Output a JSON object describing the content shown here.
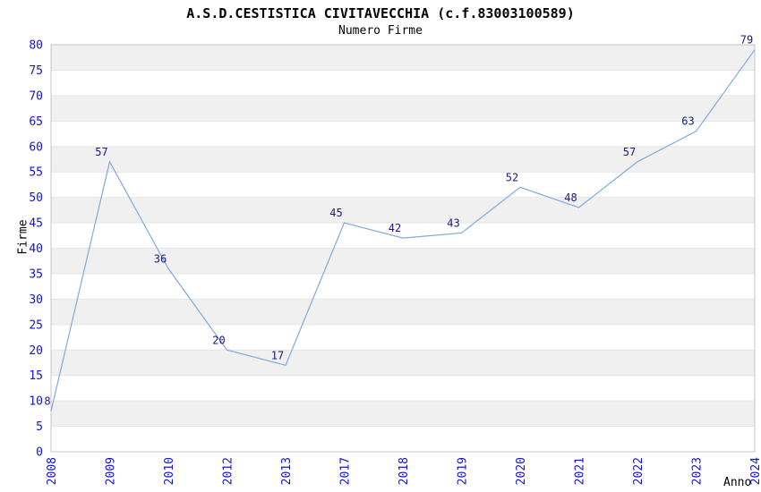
{
  "chart_data": {
    "type": "line",
    "title": "A.S.D.CESTISTICA CIVITAVECCHIA (c.f.83003100589)",
    "subtitle": "Numero Firme",
    "xlabel": "Anno",
    "ylabel": "Firme",
    "categories": [
      "2008",
      "2009",
      "2010",
      "2012",
      "2013",
      "2017",
      "2018",
      "2019",
      "2020",
      "2021",
      "2022",
      "2023",
      "2024"
    ],
    "values": [
      8,
      57,
      36,
      20,
      17,
      45,
      42,
      43,
      52,
      48,
      57,
      63,
      79
    ],
    "ylim": [
      0,
      80
    ],
    "ytick_step": 5,
    "grid": true,
    "legend": "none",
    "bands": {
      "step": 5,
      "white": "#FFFFFF",
      "gray": "#F0F0F0"
    },
    "colors": {
      "line": "#7FAADC",
      "tick_labels": "#1414CC",
      "point_labels": "#1A1A78",
      "gridline": "#E6E6E6",
      "frame": "#C4C4C4",
      "title": "#000000"
    }
  }
}
